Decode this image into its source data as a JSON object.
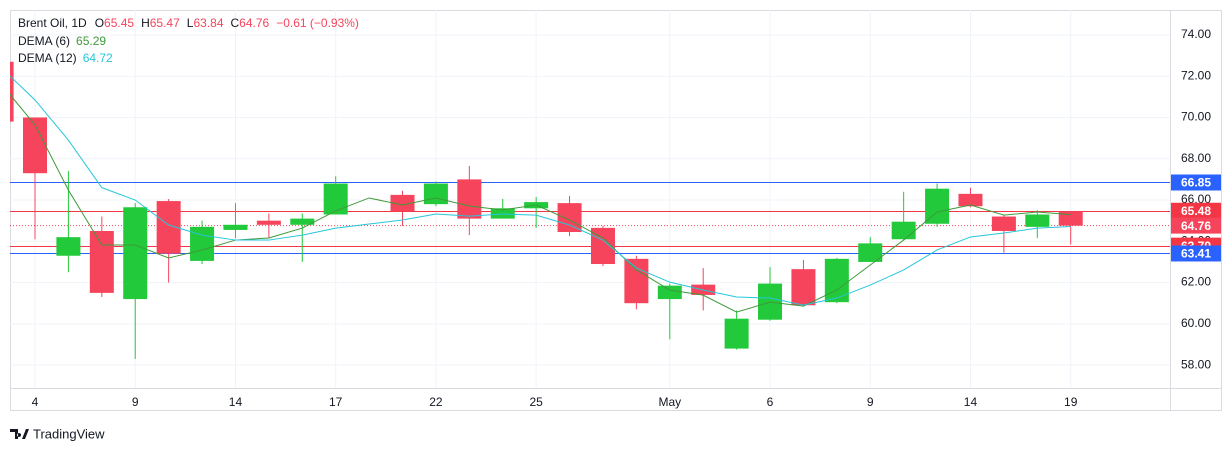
{
  "chart_data": {
    "type": "candlestick",
    "title": "Brent Oil, 1D",
    "ohlc_letters": [
      "O",
      "H",
      "L",
      "C"
    ],
    "change": "−0.61 (−0.93%)",
    "brand": "TradingView",
    "categories": [
      null,
      "4",
      null,
      null,
      "9",
      null,
      null,
      "14",
      null,
      null,
      "17",
      null,
      null,
      "22",
      null,
      null,
      "25",
      null,
      null,
      null,
      "May",
      null,
      null,
      "6",
      null,
      null,
      "9",
      null,
      null,
      "14",
      null,
      null,
      "19"
    ],
    "open": [
      72.7,
      70.0,
      63.3,
      64.5,
      61.2,
      65.95,
      63.05,
      64.55,
      65.0,
      64.8,
      65.3,
      null,
      66.25,
      65.8,
      67.0,
      65.1,
      65.6,
      65.85,
      64.65,
      63.15,
      61.2,
      61.9,
      58.8,
      60.2,
      62.65,
      61.05,
      63.0,
      64.1,
      64.85,
      66.3,
      65.2,
      64.7,
      65.45
    ],
    "high": [
      72.7,
      70.0,
      67.4,
      65.2,
      65.85,
      66.05,
      65.0,
      65.85,
      65.35,
      65.35,
      67.15,
      null,
      66.45,
      66.9,
      67.65,
      66.05,
      66.15,
      66.2,
      64.75,
      63.3,
      61.95,
      62.7,
      60.65,
      62.75,
      63.1,
      63.2,
      64.2,
      66.4,
      66.8,
      66.6,
      65.3,
      65.5,
      65.47
    ],
    "low": [
      69.8,
      64.1,
      62.5,
      61.3,
      58.3,
      62.0,
      62.9,
      64.15,
      64.15,
      63.0,
      65.3,
      null,
      64.75,
      65.7,
      64.3,
      65.1,
      64.65,
      64.25,
      62.8,
      60.7,
      59.25,
      60.65,
      58.75,
      60.15,
      60.85,
      61.0,
      63.0,
      64.05,
      64.7,
      65.65,
      63.45,
      64.15,
      63.84
    ],
    "close": [
      69.8,
      67.3,
      64.2,
      61.5,
      65.65,
      63.4,
      64.7,
      64.8,
      64.8,
      65.1,
      66.8,
      null,
      65.45,
      66.8,
      65.1,
      65.6,
      65.9,
      64.45,
      62.9,
      61.0,
      61.85,
      61.4,
      60.25,
      61.95,
      60.9,
      63.15,
      63.9,
      64.95,
      66.55,
      65.7,
      64.5,
      65.3,
      64.76
    ],
    "up_color": "#22c93a",
    "down_color": "#f5445c",
    "lines": [
      {
        "name": "DEMA (6)",
        "color": "#3f9a3a",
        "values": [
          71.6,
          69.64,
          66.48,
          63.82,
          63.82,
          63.19,
          63.58,
          64.06,
          64.16,
          64.64,
          65.47,
          66.1,
          65.76,
          66.1,
          65.71,
          65.52,
          65.76,
          65.03,
          64.16,
          62.61,
          61.64,
          61.39,
          60.57,
          61.05,
          60.86,
          61.64,
          62.85,
          64.06,
          65.42,
          65.76,
          65.27,
          65.42,
          65.29
        ]
      },
      {
        "name": "DEMA (12)",
        "color": "#26c6da",
        "values": [
          72.4,
          70.85,
          68.9,
          66.6,
          66.0,
          64.79,
          64.3,
          64.06,
          64.06,
          64.3,
          64.64,
          64.84,
          65.03,
          65.32,
          65.22,
          65.32,
          65.27,
          64.79,
          64.06,
          62.7,
          62.02,
          61.64,
          61.3,
          61.25,
          60.91,
          61.25,
          61.88,
          62.61,
          63.58,
          64.21,
          64.4,
          64.64,
          64.72
        ]
      }
    ],
    "price_lines": [
      {
        "value": 66.85,
        "color": "#2962ff"
      },
      {
        "value": 65.48,
        "color": "#f23645"
      },
      {
        "value": 63.79,
        "color": "#f23645"
      },
      {
        "value": 63.41,
        "color": "#2962ff"
      }
    ],
    "ylim": [
      56.89,
      75.21
    ],
    "yticks": [
      {
        "value": 58,
        "label": "58.00"
      },
      {
        "value": 60,
        "label": "60.00"
      },
      {
        "value": 62,
        "label": "62.00"
      },
      {
        "value": 64,
        "label": "64.00"
      },
      {
        "value": 66,
        "label": "66.00"
      },
      {
        "value": 68,
        "label": "68.00"
      },
      {
        "value": 70,
        "label": "70.00"
      },
      {
        "value": 72,
        "label": "72.00"
      },
      {
        "value": 74,
        "label": "74.00"
      }
    ],
    "grid": true
  }
}
